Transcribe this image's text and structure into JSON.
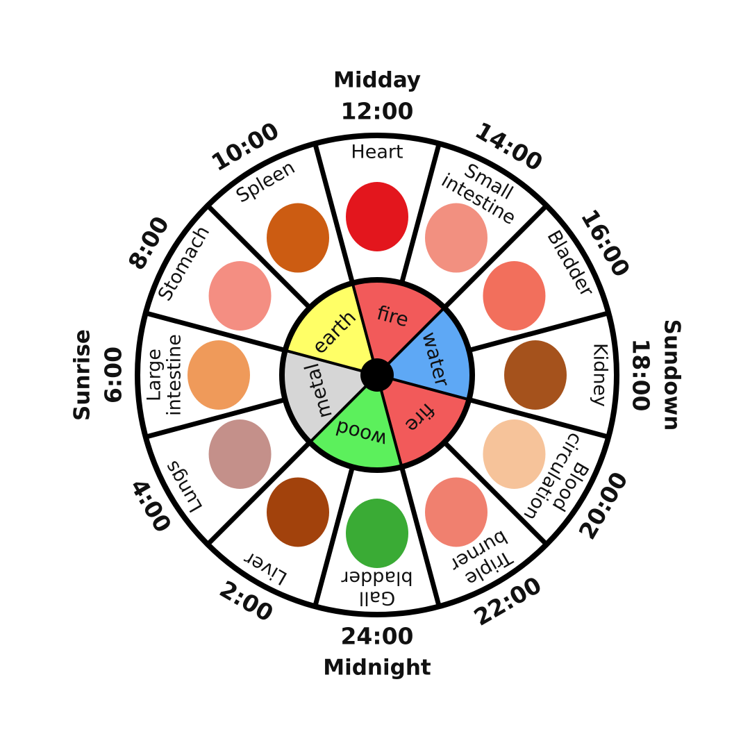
{
  "labels": {
    "top": "Midday",
    "right": "Sundown",
    "bottom": "Midnight",
    "left": "Sunrise"
  },
  "segments": [
    {
      "hour": "12:00",
      "organ": [
        "Heart"
      ]
    },
    {
      "hour": "14:00",
      "organ": [
        "Small",
        "intestine"
      ]
    },
    {
      "hour": "16:00",
      "organ": [
        "Bladder"
      ]
    },
    {
      "hour": "18:00",
      "organ": [
        "Kidney"
      ]
    },
    {
      "hour": "20:00",
      "organ": [
        "Blood",
        "circulation"
      ]
    },
    {
      "hour": "22:00",
      "organ": [
        "Triple",
        "burner"
      ]
    },
    {
      "hour": "24:00",
      "organ": [
        "Gall",
        "bladder"
      ]
    },
    {
      "hour": "2:00",
      "organ": [
        "Liver"
      ]
    },
    {
      "hour": "4:00",
      "organ": [
        "Lungs"
      ]
    },
    {
      "hour": "6:00",
      "organ": [
        "Large",
        "intestine"
      ]
    },
    {
      "hour": "8:00",
      "organ": [
        "Stomach"
      ]
    },
    {
      "hour": "10:00",
      "organ": [
        "Spleen"
      ]
    }
  ],
  "elements": [
    "fire",
    "water",
    "fire",
    "wood",
    "metal",
    "earth"
  ]
}
